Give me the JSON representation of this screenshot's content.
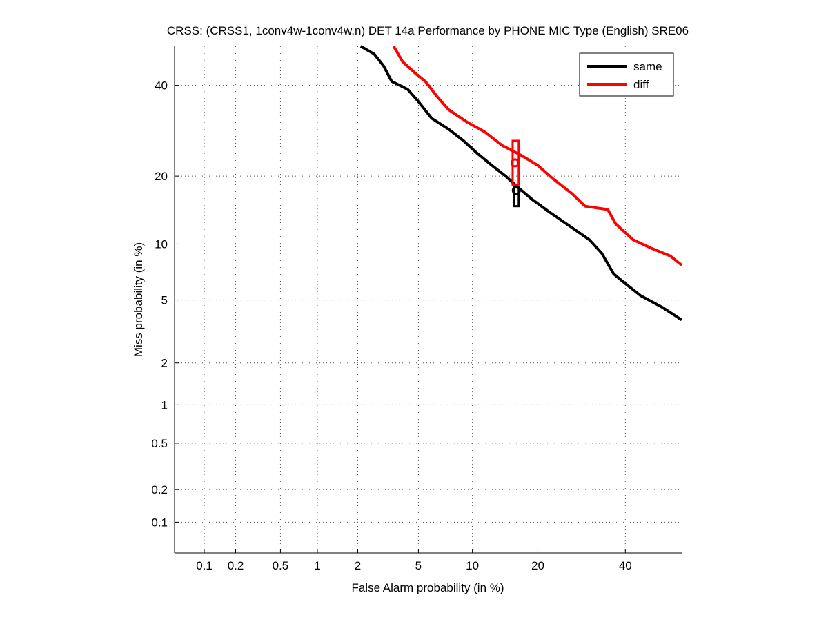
{
  "chart_data": {
    "type": "line",
    "title": "CRSS: (CRSS1, 1conv4w-1conv4w.n) DET 14a Performance by PHONE MIC Type (English) SRE06",
    "xlabel": "False Alarm probability (in %)",
    "ylabel": "Miss probability (in %)",
    "x_scale": "probit",
    "y_scale": "probit",
    "xlim": [
      0.05,
      55
    ],
    "ylim": [
      0.05,
      50
    ],
    "x_ticks": [
      0.1,
      0.2,
      0.5,
      1,
      2,
      5,
      10,
      20,
      40
    ],
    "x_tick_labels": [
      "0.1",
      "0.2",
      "0.5",
      "1",
      "2",
      "5",
      "10",
      "20",
      "40"
    ],
    "y_ticks": [
      0.1,
      0.2,
      0.5,
      1,
      2,
      5,
      10,
      20,
      40
    ],
    "y_tick_labels": [
      "0.1",
      "0.2",
      "0.5",
      "1",
      "2",
      "5",
      "10",
      "20",
      "40"
    ],
    "grid": true,
    "legend_position": "top-right",
    "series": [
      {
        "name": "same",
        "color": "#000000",
        "points": [
          [
            2.1,
            50
          ],
          [
            2.6,
            48
          ],
          [
            3.0,
            45
          ],
          [
            3.4,
            41
          ],
          [
            4.3,
            39
          ],
          [
            5.0,
            36
          ],
          [
            6.0,
            32
          ],
          [
            7.5,
            29.5
          ],
          [
            9.0,
            27
          ],
          [
            10.5,
            24.5
          ],
          [
            12.5,
            22
          ],
          [
            14.5,
            20
          ],
          [
            16.5,
            18
          ],
          [
            19.0,
            16
          ],
          [
            22.5,
            14
          ],
          [
            27.0,
            12
          ],
          [
            31.0,
            10.5
          ],
          [
            34.0,
            9
          ],
          [
            37.0,
            7
          ],
          [
            40.0,
            6.2
          ],
          [
            44.0,
            5.3
          ],
          [
            50.0,
            4.5
          ],
          [
            55.0,
            3.8
          ]
        ],
        "operating_point": {
          "fa": 16.2,
          "miss": 17.5
        },
        "confidence_box": {
          "fa": [
            15.8,
            16.6
          ],
          "miss": [
            15.0,
            18.0
          ]
        }
      },
      {
        "name": "diff",
        "color": "#ff0000",
        "points": [
          [
            3.5,
            50
          ],
          [
            4.0,
            46
          ],
          [
            4.8,
            43
          ],
          [
            5.5,
            41
          ],
          [
            6.5,
            37
          ],
          [
            7.5,
            34
          ],
          [
            9.5,
            31
          ],
          [
            11.5,
            29
          ],
          [
            14.0,
            26
          ],
          [
            17.0,
            24
          ],
          [
            20.0,
            22
          ],
          [
            23.0,
            19.5
          ],
          [
            27.0,
            17
          ],
          [
            30.0,
            15
          ],
          [
            35.5,
            14.5
          ],
          [
            37.5,
            12.5
          ],
          [
            42.0,
            10.5
          ],
          [
            47.0,
            9.5
          ],
          [
            52.0,
            8.7
          ],
          [
            55.0,
            7.8
          ]
        ],
        "operating_point": {
          "fa": 16.0,
          "miss": 22.5
        },
        "confidence_box": {
          "fa": [
            15.6,
            16.6
          ],
          "miss": [
            18.5,
            27.0
          ]
        }
      }
    ]
  }
}
